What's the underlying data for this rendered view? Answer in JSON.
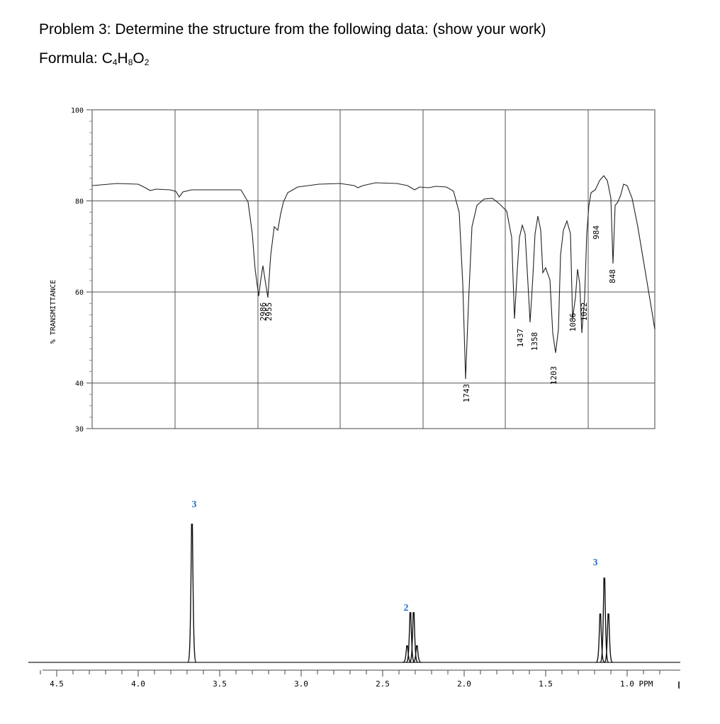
{
  "problem": {
    "title": "Problem 3:  Determine the structure from the following data: (show your work)",
    "formula_label": "Formula:  ",
    "formula_parts": [
      {
        "text": "C",
        "sub": false
      },
      {
        "text": "4",
        "sub": true
      },
      {
        "text": "H",
        "sub": false
      },
      {
        "text": "8",
        "sub": true
      },
      {
        "text": "O",
        "sub": false
      },
      {
        "text": "2",
        "sub": true
      }
    ]
  },
  "chart_data": [
    {
      "type": "line",
      "subtype": "ir-spectrum",
      "title": "",
      "xlabel": "",
      "ylabel": "% TRANSMITTANCE",
      "ylim": [
        30,
        100
      ],
      "y_ticks": [
        100,
        80,
        60,
        40,
        30
      ],
      "y_tick_labels": [
        "100",
        "80",
        "60",
        "40",
        "30"
      ],
      "grid": true,
      "peaks": [
        {
          "label": "2986",
          "transmittance": 53
        },
        {
          "label": "2955",
          "transmittance": 53
        },
        {
          "label": "1743",
          "transmittance": 32
        },
        {
          "label": "1437",
          "transmittance": 47
        },
        {
          "label": "1358",
          "transmittance": 47
        },
        {
          "label": "1203",
          "transmittance": 35
        },
        {
          "label": "1086",
          "transmittance": 47
        },
        {
          "label": "1022",
          "transmittance": 53
        },
        {
          "label": "984",
          "transmittance": 72
        },
        {
          "label": "848",
          "transmittance": 59
        }
      ]
    },
    {
      "type": "line",
      "subtype": "1H-nmr-spectrum",
      "title": "",
      "xlabel": "PPM",
      "xlim": [
        4.5,
        0.9
      ],
      "x_tick_labels": [
        {
          "value": 4.5,
          "label": "4.5"
        },
        {
          "value": 4.0,
          "label": "4.0"
        },
        {
          "value": 3.5,
          "label": "3.5"
        },
        {
          "value": 3.0,
          "label": "3.0"
        },
        {
          "value": 2.5,
          "label": "2.5"
        },
        {
          "value": 2.0,
          "label": "2.0"
        },
        {
          "value": 1.5,
          "label": "1.5"
        },
        {
          "value": 1.0,
          "label": "1.0 PPM"
        }
      ],
      "signals": [
        {
          "shift_ppm": 3.67,
          "multiplicity": "singlet",
          "integration": "3",
          "lines": [
            {
              "ppm": 3.67,
              "height": 1.0
            }
          ]
        },
        {
          "shift_ppm": 2.32,
          "multiplicity": "quartet",
          "integration": "2",
          "lines": [
            {
              "ppm": 2.35,
              "height": 0.12
            },
            {
              "ppm": 2.33,
              "height": 0.36
            },
            {
              "ppm": 2.31,
              "height": 0.36
            },
            {
              "ppm": 2.29,
              "height": 0.12
            }
          ]
        },
        {
          "shift_ppm": 1.14,
          "multiplicity": "triplet",
          "integration": "3",
          "lines": [
            {
              "ppm": 1.165,
              "height": 0.35
            },
            {
              "ppm": 1.14,
              "height": 0.61
            },
            {
              "ppm": 1.115,
              "height": 0.35
            }
          ]
        }
      ]
    }
  ],
  "colors": {
    "integration_label": "#2a6fcf",
    "ink": "#000000",
    "grid": "#555555"
  }
}
